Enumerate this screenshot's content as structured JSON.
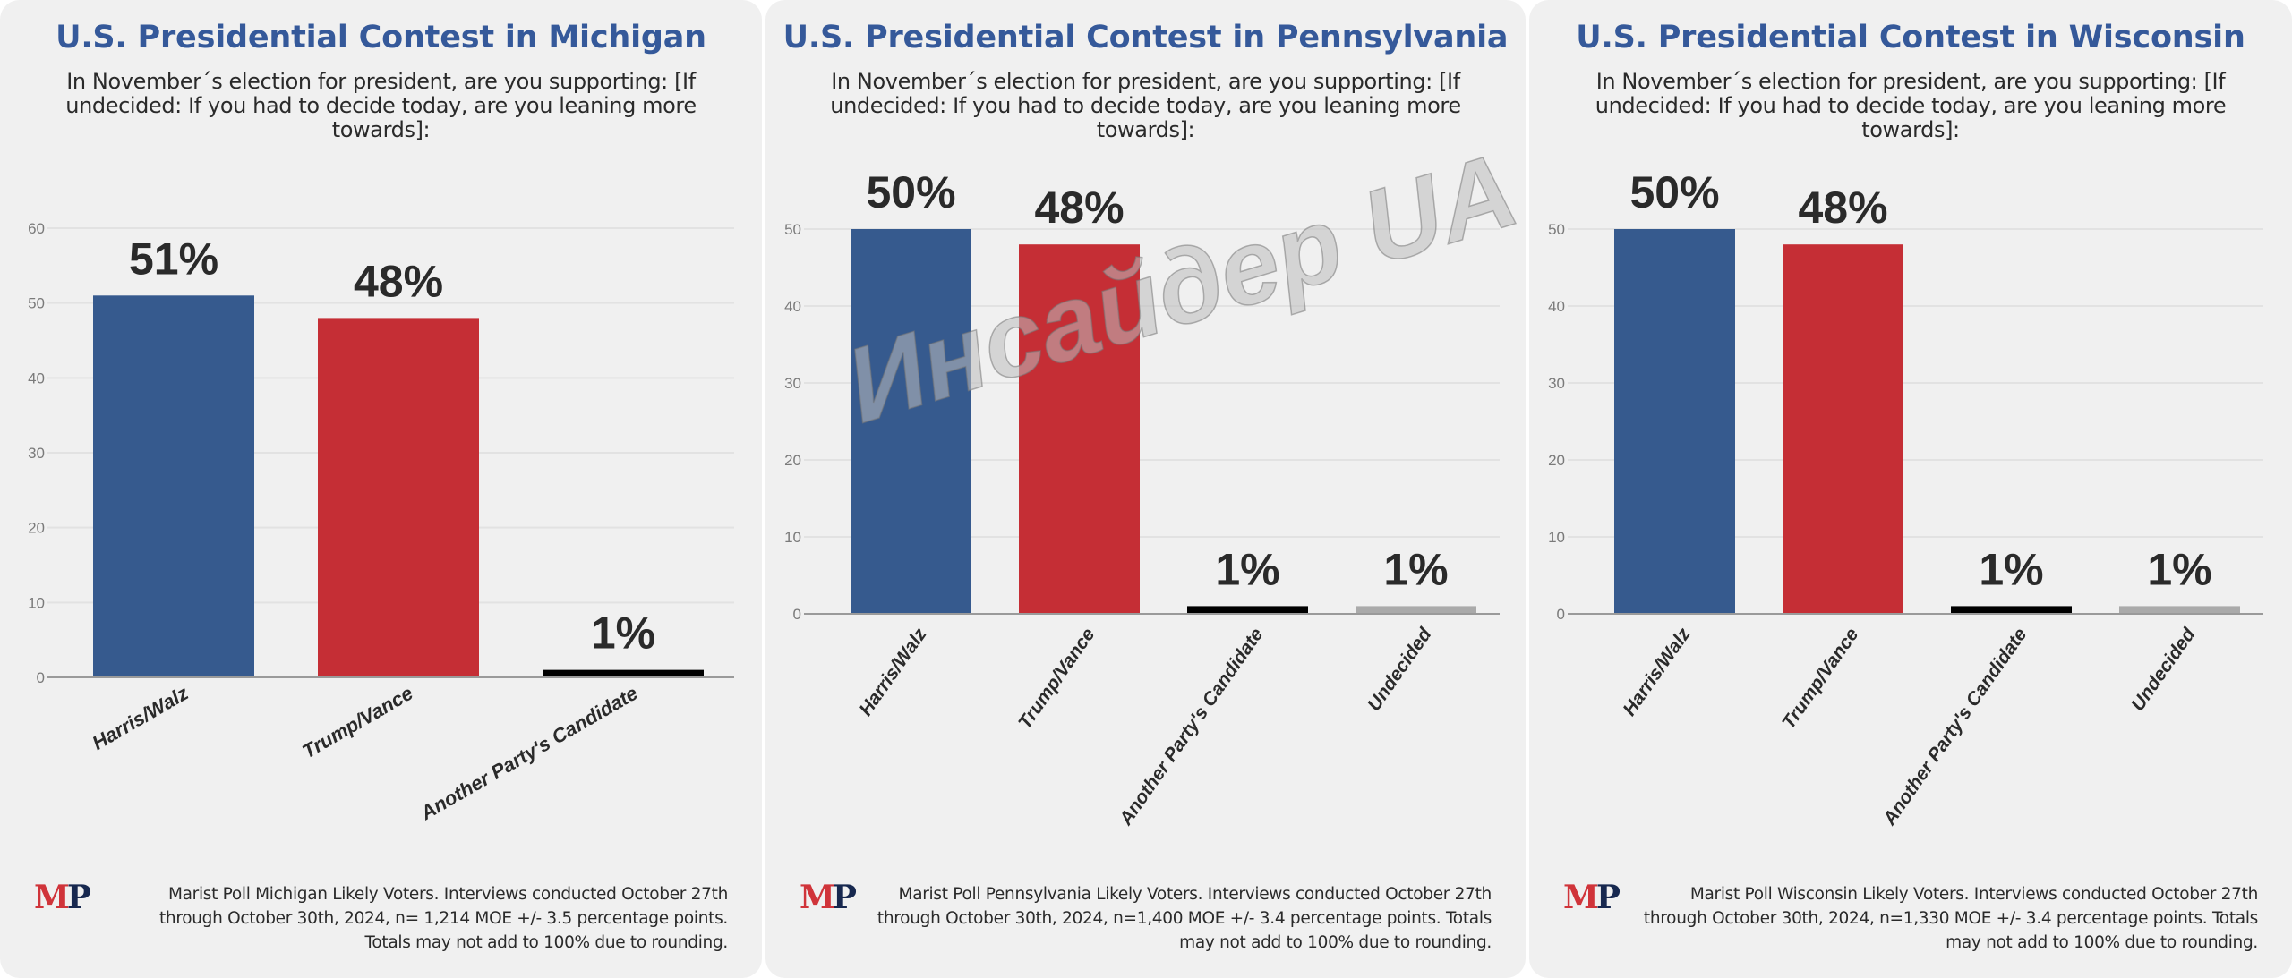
{
  "colors": {
    "harris": "#365a8e",
    "trump": "#c52e35",
    "another": "#000000",
    "undecided": "#aaaaaa",
    "title": "#35599a",
    "grid": "#e2e2e2",
    "axis": "#9a9a9a",
    "tick": "#7a7a7a",
    "value_label": "#2a2a2a"
  },
  "logo": {
    "m": "M",
    "p": "P"
  },
  "watermark": "Инсайдер UA",
  "panels": [
    {
      "title": "U.S. Presidential Contest in Michigan",
      "question": "In November´s election for president, are you supporting: [If undecided: If you had to decide today, are you leaning more towards]:",
      "footer": "Marist Poll Michigan Likely Voters. Interviews conducted October 27th through October 30th, 2024, n= 1,214 MOE +/- 3.5 percentage points. Totals may not add to 100% due to rounding."
    },
    {
      "title": "U.S. Presidential Contest in Pennsylvania",
      "question": "In November´s election for president, are you supporting: [If undecided: If you had to decide today, are you leaning more towards]:",
      "footer": "Marist Poll Pennsylvania Likely Voters. Interviews conducted October 27th through October 30th, 2024, n=1,400 MOE +/- 3.4 percentage points. Totals may not add to 100% due to rounding."
    },
    {
      "title": "U.S. Presidential Contest in Wisconsin",
      "question": "In November´s election for president, are you supporting: [If undecided: If you had to decide today, are you leaning more towards]:",
      "footer": "Marist Poll Wisconsin Likely Voters. Interviews conducted October 27th through October 30th, 2024, n=1,330 MOE +/- 3.4 percentage points. Totals may not add to 100% due to rounding."
    }
  ],
  "chart_data": [
    {
      "type": "bar",
      "title": "U.S. Presidential Contest in Michigan",
      "xlabel": "",
      "ylabel": "",
      "categories": [
        "Harris/Walz",
        "Trump/Vance",
        "Another Party's Candidate"
      ],
      "values": [
        51,
        48,
        1
      ],
      "value_labels": [
        "51%",
        "48%",
        "1%"
      ],
      "bar_colors": [
        "harris",
        "trump",
        "another"
      ],
      "ylim": [
        0,
        60
      ],
      "yticks": [
        0,
        10,
        20,
        30,
        40,
        50,
        60
      ],
      "grid": true,
      "xtick_rotation": "diagonal",
      "legend": "none"
    },
    {
      "type": "bar",
      "title": "U.S. Presidential Contest in Pennsylvania",
      "xlabel": "",
      "ylabel": "",
      "categories": [
        "Harris/Walz",
        "Trump/Vance",
        "Another Party's Candidate",
        "Undecided"
      ],
      "values": [
        50,
        48,
        1,
        1
      ],
      "value_labels": [
        "50%",
        "48%",
        "1%",
        "1%"
      ],
      "bar_colors": [
        "harris",
        "trump",
        "another",
        "undecided"
      ],
      "ylim": [
        0,
        50
      ],
      "yticks": [
        0,
        10,
        20,
        30,
        40,
        50
      ],
      "grid": true,
      "xtick_rotation": "steep",
      "legend": "none"
    },
    {
      "type": "bar",
      "title": "U.S. Presidential Contest in Wisconsin",
      "xlabel": "",
      "ylabel": "",
      "categories": [
        "Harris/Walz",
        "Trump/Vance",
        "Another Party's Candidate",
        "Undecided"
      ],
      "values": [
        50,
        48,
        1,
        1
      ],
      "value_labels": [
        "50%",
        "48%",
        "1%",
        "1%"
      ],
      "bar_colors": [
        "harris",
        "trump",
        "another",
        "undecided"
      ],
      "ylim": [
        0,
        50
      ],
      "yticks": [
        0,
        10,
        20,
        30,
        40,
        50
      ],
      "grid": true,
      "xtick_rotation": "steep",
      "legend": "none"
    }
  ]
}
